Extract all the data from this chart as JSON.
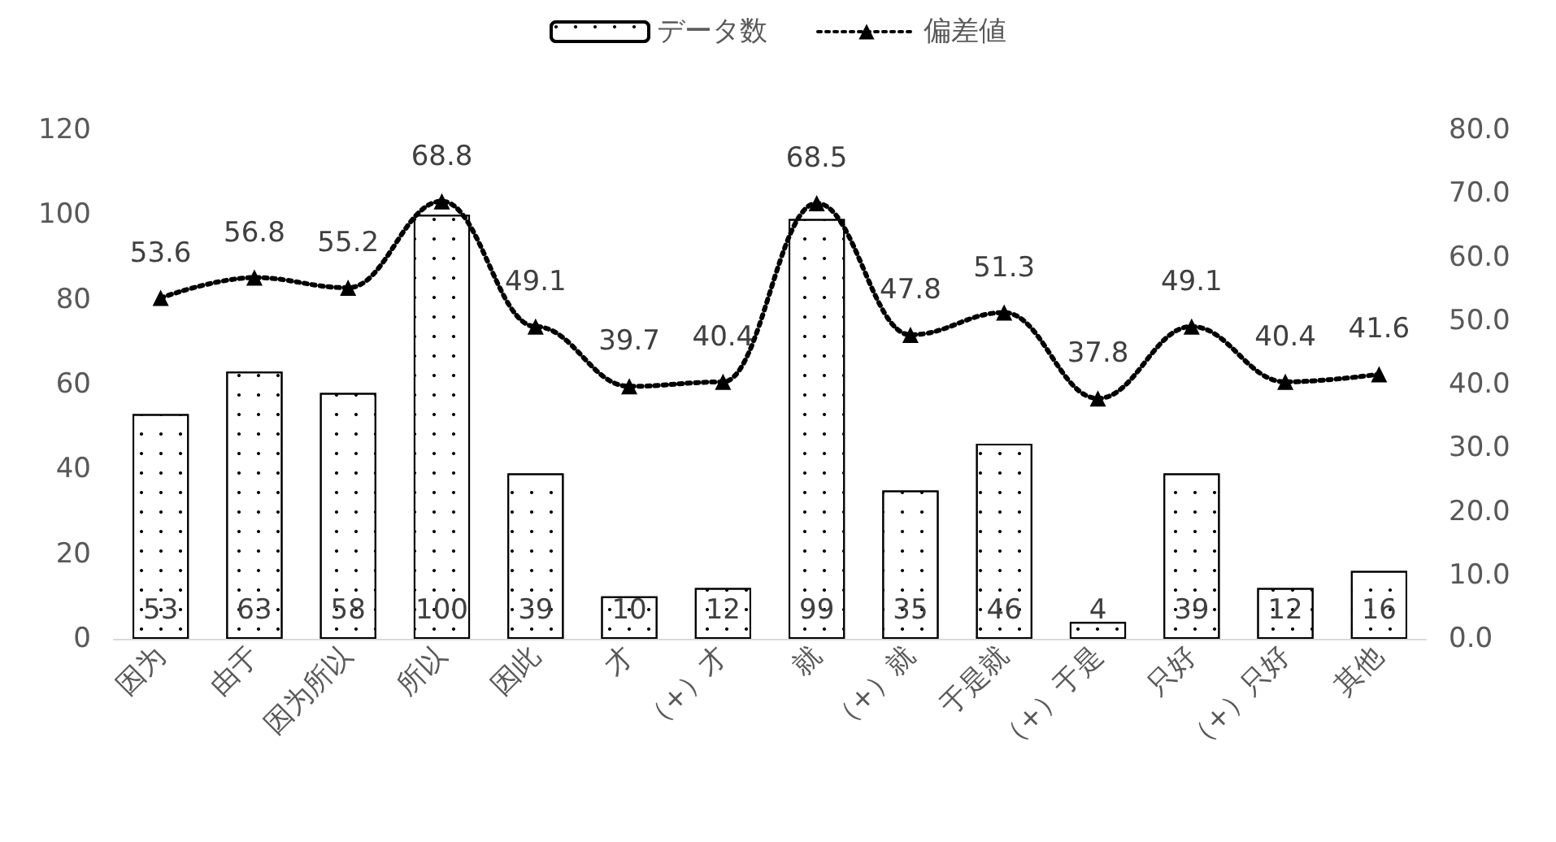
{
  "chart_data": {
    "type": "bar",
    "categories": [
      "因为",
      "由于",
      "因为所以",
      "所以",
      "因此",
      "才",
      "（+）才",
      "就",
      "（+）就",
      "于是就",
      "（+）于是",
      "只好",
      "（+）只好",
      "其他"
    ],
    "series": [
      {
        "name": "データ数",
        "color": "#ffffff",
        "values": [
          53,
          63,
          58,
          100,
          39,
          10,
          12,
          99,
          35,
          46,
          4,
          39,
          12,
          16
        ]
      },
      {
        "name": "偏差値",
        "type": "line",
        "axis": "y2",
        "color": "#000000",
        "marker": "triangle",
        "line_style": "dotted",
        "values": [
          53.6,
          56.8,
          55.2,
          68.8,
          49.1,
          39.7,
          40.4,
          68.5,
          47.8,
          51.3,
          37.8,
          49.1,
          40.4,
          41.6
        ]
      }
    ],
    "ylim": [
      0,
      120
    ],
    "yticks": [
      0,
      20,
      40,
      60,
      80,
      100,
      120
    ],
    "y2lim": [
      0,
      80
    ],
    "y2ticks": [
      {
        "value": 0,
        "label": "0.0"
      },
      {
        "value": 10,
        "label": "10.0"
      },
      {
        "value": 20,
        "label": "20.0"
      },
      {
        "value": 30,
        "label": "30.0"
      },
      {
        "value": 40,
        "label": "40.0"
      },
      {
        "value": 50,
        "label": "50.0"
      },
      {
        "value": 60,
        "label": "60.0"
      },
      {
        "value": 70,
        "label": "70.0"
      },
      {
        "value": 80,
        "label": "80.0"
      }
    ],
    "data_labels": true,
    "grid": false,
    "legend": "top"
  }
}
